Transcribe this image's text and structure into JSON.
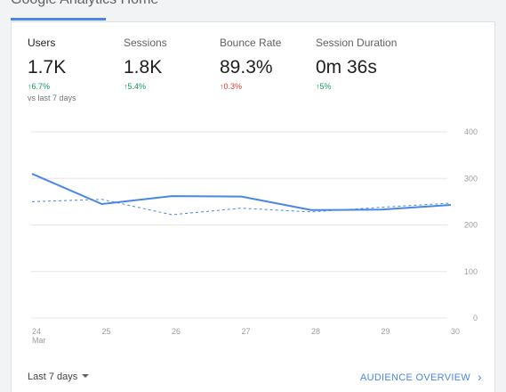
{
  "header": {
    "title": "Google Analytics Home"
  },
  "metrics": [
    {
      "label": "Users",
      "value": "1.7K",
      "change": "6.7%",
      "direction": "up",
      "active": true
    },
    {
      "label": "Sessions",
      "value": "1.8K",
      "change": "5.4%",
      "direction": "up",
      "active": false
    },
    {
      "label": "Bounce Rate",
      "value": "89.3%",
      "change": "0.3%",
      "direction": "up",
      "color": "#db4437",
      "active": false
    },
    {
      "label": "Session Duration",
      "value": "0m 36s",
      "change": "5%",
      "direction": "up",
      "active": false
    }
  ],
  "compare_note": "vs last 7 days",
  "chart_data": {
    "type": "line",
    "x": [
      "24 Mar",
      "25",
      "26",
      "27",
      "28",
      "29",
      "30"
    ],
    "x_tick_labels": [
      [
        "24",
        "Mar"
      ],
      [
        "25"
      ],
      [
        "26"
      ],
      [
        "27"
      ],
      [
        "28"
      ],
      [
        "29"
      ],
      [
        "30"
      ]
    ],
    "y_ticks": [
      0,
      100,
      200,
      300,
      400
    ],
    "ylim": [
      0,
      400
    ],
    "y_axis_position": "right",
    "grid": true,
    "series": [
      {
        "values": [
          310,
          245,
          262,
          261,
          232,
          233,
          243
        ],
        "style": "solid",
        "color": "#4a86e8"
      },
      {
        "values": [
          250,
          255,
          222,
          236,
          228,
          238,
          247
        ],
        "style": "dashed",
        "color": "#4a86e8"
      }
    ]
  },
  "footer": {
    "date_range": "Last 7 days",
    "link_label": "AUDIENCE OVERVIEW",
    "link_icon": "chevron-right-icon"
  }
}
